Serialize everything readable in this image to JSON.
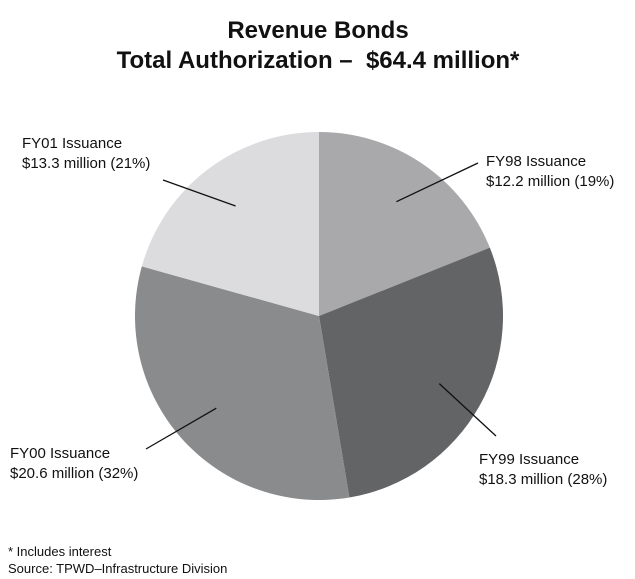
{
  "chart_data": {
    "type": "pie",
    "title": "Revenue Bonds",
    "subtitle": "Total Authorization –  $64.4 million*",
    "unit": "million",
    "slices": [
      {
        "label": "FY98 Issuance",
        "value": 12.2,
        "value_text": "$12.2 million (19%)",
        "percent": 19,
        "color": "#a9a9ab"
      },
      {
        "label": "FY99 Issuance",
        "value": 18.3,
        "value_text": "$18.3 million (28%)",
        "percent": 28,
        "color": "#636466"
      },
      {
        "label": "FY00 Issuance",
        "value": 20.6,
        "value_text": "$20.6 million (32%)",
        "percent": 32,
        "color": "#8a8b8d"
      },
      {
        "label": "FY01 Issuance",
        "value": 13.3,
        "value_text": "$13.3 million (21%)",
        "percent": 21,
        "color": "#dcdcde"
      }
    ],
    "footnote": "* Includes interest",
    "source": "Source: TPWD–Infrastructure Division"
  }
}
